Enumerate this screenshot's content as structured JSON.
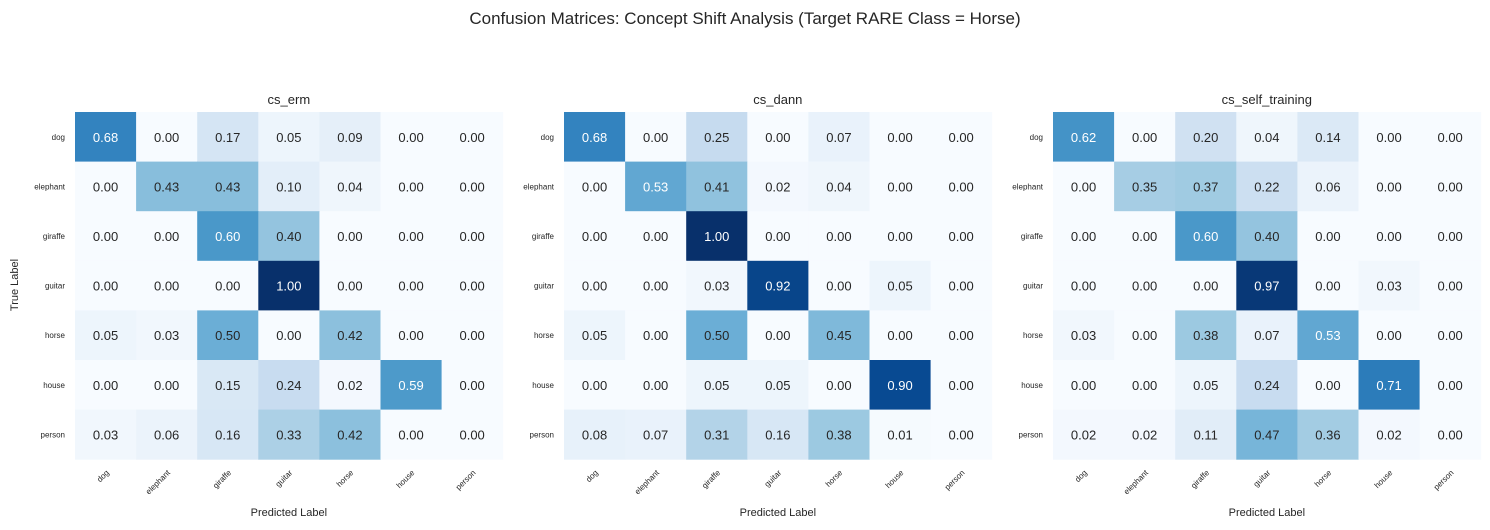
{
  "chart_data": {
    "type": "heatmap",
    "title": "Confusion Matrices: Concept Shift Analysis (Target RARE Class = Horse)",
    "xlabel": "Predicted Label",
    "ylabel": "True Label",
    "colormap": "Blues",
    "value_range": [
      0,
      1
    ],
    "labels": [
      "dog",
      "elephant",
      "giraffe",
      "guitar",
      "horse",
      "house",
      "person"
    ],
    "panels": [
      {
        "title": "cs_erm",
        "matrix": [
          [
            0.68,
            0.0,
            0.17,
            0.05,
            0.09,
            0.0,
            0.0
          ],
          [
            0.0,
            0.43,
            0.43,
            0.1,
            0.04,
            0.0,
            0.0
          ],
          [
            0.0,
            0.0,
            0.6,
            0.4,
            0.0,
            0.0,
            0.0
          ],
          [
            0.0,
            0.0,
            0.0,
            1.0,
            0.0,
            0.0,
            0.0
          ],
          [
            0.05,
            0.03,
            0.5,
            0.0,
            0.42,
            0.0,
            0.0
          ],
          [
            0.0,
            0.0,
            0.15,
            0.24,
            0.02,
            0.59,
            0.0
          ],
          [
            0.03,
            0.06,
            0.16,
            0.33,
            0.42,
            0.0,
            0.0
          ]
        ]
      },
      {
        "title": "cs_dann",
        "matrix": [
          [
            0.68,
            0.0,
            0.25,
            0.0,
            0.07,
            0.0,
            0.0
          ],
          [
            0.0,
            0.53,
            0.41,
            0.02,
            0.04,
            0.0,
            0.0
          ],
          [
            0.0,
            0.0,
            1.0,
            0.0,
            0.0,
            0.0,
            0.0
          ],
          [
            0.0,
            0.0,
            0.03,
            0.92,
            0.0,
            0.05,
            0.0
          ],
          [
            0.05,
            0.0,
            0.5,
            0.0,
            0.45,
            0.0,
            0.0
          ],
          [
            0.0,
            0.0,
            0.05,
            0.05,
            0.0,
            0.9,
            0.0
          ],
          [
            0.08,
            0.07,
            0.31,
            0.16,
            0.38,
            0.01,
            0.0
          ]
        ]
      },
      {
        "title": "cs_self_training",
        "matrix": [
          [
            0.62,
            0.0,
            0.2,
            0.04,
            0.14,
            0.0,
            0.0
          ],
          [
            0.0,
            0.35,
            0.37,
            0.22,
            0.06,
            0.0,
            0.0
          ],
          [
            0.0,
            0.0,
            0.6,
            0.4,
            0.0,
            0.0,
            0.0
          ],
          [
            0.0,
            0.0,
            0.0,
            0.97,
            0.0,
            0.03,
            0.0
          ],
          [
            0.03,
            0.0,
            0.38,
            0.07,
            0.53,
            0.0,
            0.0
          ],
          [
            0.0,
            0.0,
            0.05,
            0.24,
            0.0,
            0.71,
            0.0
          ],
          [
            0.02,
            0.02,
            0.11,
            0.47,
            0.36,
            0.02,
            0.0
          ]
        ]
      }
    ]
  }
}
